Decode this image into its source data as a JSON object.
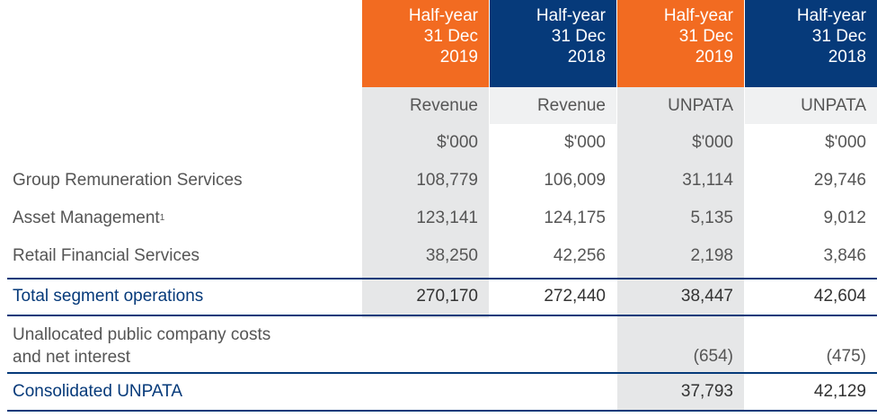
{
  "columns": [
    {
      "header": [
        "Half-year",
        "31 Dec",
        "2019"
      ],
      "measure": "Revenue",
      "unit": "$'000",
      "color": "#f26b21"
    },
    {
      "header": [
        "Half-year",
        "31 Dec",
        "2018"
      ],
      "measure": "Revenue",
      "unit": "$'000",
      "color": "#063a7a"
    },
    {
      "header": [
        "Half-year",
        "31 Dec",
        "2019"
      ],
      "measure": "UNPATA",
      "unit": "$'000",
      "color": "#f26b21"
    },
    {
      "header": [
        "Half-year",
        "31 Dec",
        "2018"
      ],
      "measure": "UNPATA",
      "unit": "$'000",
      "color": "#063a7a"
    }
  ],
  "rows": [
    {
      "label": "Group Remuneration Services",
      "values": [
        "108,779",
        "106,009",
        "31,114",
        "29,746"
      ]
    },
    {
      "label": "Asset Management",
      "sup": "1",
      "values": [
        "123,141",
        "124,175",
        "5,135",
        "9,012"
      ]
    },
    {
      "label": "Retail Financial Services",
      "values": [
        "38,250",
        "42,256",
        "2,198",
        "3,846"
      ]
    }
  ],
  "total": {
    "label": "Total segment operations",
    "values": [
      "270,170",
      "272,440",
      "38,447",
      "42,604"
    ]
  },
  "unallocated": {
    "label_line1": "Unallocated public company costs",
    "label_line2": "and net interest",
    "values": [
      "",
      "",
      "(654)",
      "(475)"
    ]
  },
  "consolidated": {
    "label": "Consolidated UNPATA",
    "values": [
      "",
      "",
      "37,793",
      "42,129"
    ]
  },
  "colors": {
    "orange": "#f26b21",
    "navy": "#063a7a",
    "shade": "#e6e7e8"
  }
}
